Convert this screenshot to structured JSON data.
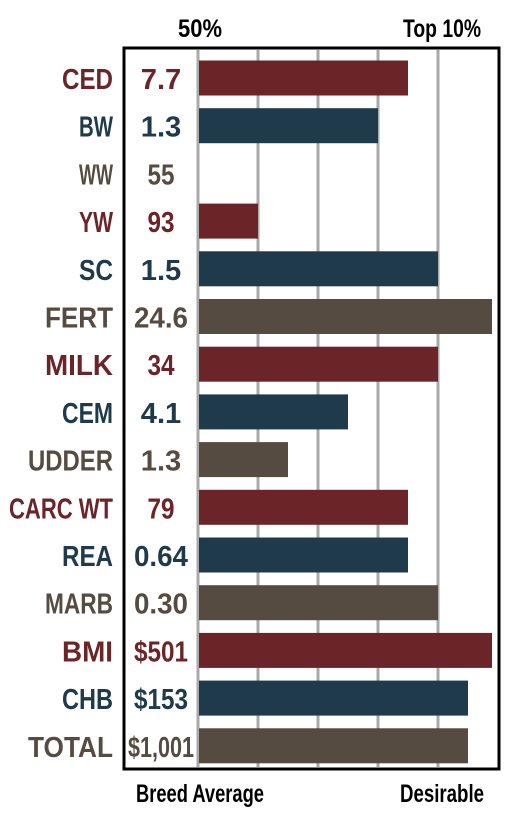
{
  "chart_data": {
    "type": "bar",
    "orientation": "horizontal",
    "top_labels": [
      "50%",
      "Top 10%"
    ],
    "bottom_labels": [
      "Breed Average",
      "Desirable"
    ],
    "xlim": [
      0,
      100
    ],
    "grid": true,
    "rows": [
      {
        "trait": "CED",
        "value_label": "7.7",
        "bar": 70,
        "color": "#6b2427"
      },
      {
        "trait": "BW",
        "value_label": "1.3",
        "bar": 60,
        "color": "#1f3a4a"
      },
      {
        "trait": "WW",
        "value_label": "55",
        "bar": 0,
        "color": "#564b40"
      },
      {
        "trait": "YW",
        "value_label": "93",
        "bar": 20,
        "color": "#6b2427"
      },
      {
        "trait": "SC",
        "value_label": "1.5",
        "bar": 80,
        "color": "#1f3a4a"
      },
      {
        "trait": "FERT",
        "value_label": "24.6",
        "bar": 98,
        "color": "#564b40"
      },
      {
        "trait": "MILK",
        "value_label": "34",
        "bar": 80,
        "color": "#6b2427"
      },
      {
        "trait": "CEM",
        "value_label": "4.1",
        "bar": 50,
        "color": "#1f3a4a"
      },
      {
        "trait": "UDDER",
        "value_label": "1.3",
        "bar": 30,
        "color": "#564b40"
      },
      {
        "trait": "CARC WT",
        "value_label": "79",
        "bar": 70,
        "color": "#6b2427"
      },
      {
        "trait": "REA",
        "value_label": "0.64",
        "bar": 70,
        "color": "#1f3a4a"
      },
      {
        "trait": "MARB",
        "value_label": "0.30",
        "bar": 80,
        "color": "#564b40"
      },
      {
        "trait": "BMI",
        "value_label": "$501",
        "bar": 98,
        "color": "#6b2427"
      },
      {
        "trait": "CHB",
        "value_label": "$153",
        "bar": 90,
        "color": "#1f3a4a"
      },
      {
        "trait": "TOTAL",
        "value_label": "$1,001",
        "bar": 90,
        "color": "#564b40"
      }
    ]
  }
}
